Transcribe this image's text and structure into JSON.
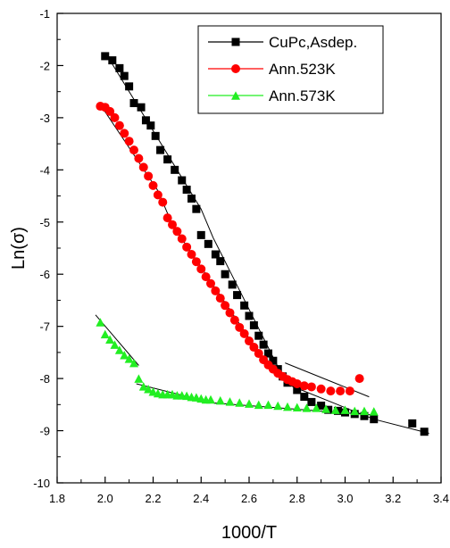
{
  "chart_data": {
    "type": "scatter",
    "title": "",
    "xlabel": "1000/T",
    "ylabel": "Ln(σ)",
    "xlim": [
      1.8,
      3.4
    ],
    "ylim": [
      -10,
      -1
    ],
    "x_ticks": [
      1.8,
      2.0,
      2.2,
      2.4,
      2.6,
      2.8,
      3.0,
      3.2,
      3.4
    ],
    "x_tick_labels": [
      "1.8",
      "2.0",
      "2.2",
      "2.4",
      "2.6",
      "2.8",
      "3.0",
      "3.2",
      "3.4"
    ],
    "y_ticks": [
      -10,
      -9,
      -8,
      -7,
      -6,
      -5,
      -4,
      -3,
      -2,
      -1
    ],
    "y_tick_labels": [
      "-10",
      "-9",
      "-8",
      "-7",
      "-6",
      "-5",
      "-4",
      "-3",
      "-2",
      "-1"
    ],
    "grid": false,
    "legend_position": "top-right",
    "series": [
      {
        "name": "CuPc,Asdep.",
        "marker": "square",
        "color": "#000000",
        "x": [
          2.0,
          2.03,
          2.06,
          2.08,
          2.1,
          2.12,
          2.15,
          2.17,
          2.19,
          2.21,
          2.23,
          2.26,
          2.29,
          2.32,
          2.34,
          2.36,
          2.38,
          2.4,
          2.43,
          2.46,
          2.48,
          2.5,
          2.53,
          2.55,
          2.58,
          2.6,
          2.62,
          2.64,
          2.66,
          2.68,
          2.7,
          2.72,
          2.74,
          2.76,
          2.8,
          2.83,
          2.86,
          2.9,
          2.93,
          2.97,
          3.0,
          3.04,
          3.08,
          3.12,
          3.28,
          3.33
        ],
        "y": [
          -1.82,
          -1.9,
          -2.05,
          -2.2,
          -2.4,
          -2.72,
          -2.8,
          -3.05,
          -3.15,
          -3.35,
          -3.62,
          -3.8,
          -4.0,
          -4.2,
          -4.38,
          -4.55,
          -4.75,
          -5.25,
          -5.42,
          -5.62,
          -5.75,
          -6.0,
          -6.2,
          -6.4,
          -6.6,
          -6.8,
          -6.98,
          -7.18,
          -7.35,
          -7.52,
          -7.66,
          -7.82,
          -7.96,
          -8.08,
          -8.22,
          -8.35,
          -8.45,
          -8.52,
          -8.6,
          -8.62,
          -8.65,
          -8.68,
          -8.72,
          -8.78,
          -8.86,
          -9.02
        ]
      },
      {
        "name": "Ann.523K",
        "marker": "circle",
        "color": "#ff0000",
        "x": [
          1.98,
          2.0,
          2.02,
          2.04,
          2.06,
          2.08,
          2.1,
          2.12,
          2.14,
          2.16,
          2.18,
          2.2,
          2.22,
          2.24,
          2.26,
          2.28,
          2.3,
          2.32,
          2.34,
          2.36,
          2.38,
          2.4,
          2.42,
          2.44,
          2.46,
          2.48,
          2.5,
          2.52,
          2.54,
          2.56,
          2.58,
          2.6,
          2.62,
          2.64,
          2.66,
          2.68,
          2.7,
          2.72,
          2.74,
          2.76,
          2.78,
          2.8,
          2.83,
          2.86,
          2.9,
          2.94,
          2.98,
          3.02,
          3.06
        ],
        "y": [
          -2.78,
          -2.8,
          -2.88,
          -3.0,
          -3.15,
          -3.3,
          -3.45,
          -3.62,
          -3.78,
          -3.95,
          -4.12,
          -4.3,
          -4.48,
          -4.62,
          -4.92,
          -5.05,
          -5.18,
          -5.32,
          -5.48,
          -5.62,
          -5.76,
          -5.9,
          -6.05,
          -6.18,
          -6.32,
          -6.46,
          -6.6,
          -6.74,
          -6.88,
          -7.02,
          -7.14,
          -7.28,
          -7.4,
          -7.52,
          -7.64,
          -7.74,
          -7.82,
          -7.9,
          -7.96,
          -8.02,
          -8.06,
          -8.1,
          -8.14,
          -8.16,
          -8.2,
          -8.24,
          -8.24,
          -8.24,
          -8.0
        ]
      },
      {
        "name": "Ann.573K",
        "marker": "triangle",
        "color": "#22ee22",
        "x": [
          1.98,
          2.0,
          2.02,
          2.04,
          2.06,
          2.08,
          2.1,
          2.12,
          2.14,
          2.16,
          2.18,
          2.2,
          2.22,
          2.24,
          2.26,
          2.28,
          2.3,
          2.32,
          2.34,
          2.36,
          2.38,
          2.4,
          2.42,
          2.44,
          2.48,
          2.52,
          2.56,
          2.6,
          2.64,
          2.68,
          2.72,
          2.76,
          2.8,
          2.84,
          2.88,
          2.92,
          2.96,
          3.0,
          3.04,
          3.08,
          3.12
        ],
        "y": [
          -6.92,
          -7.15,
          -7.25,
          -7.35,
          -7.45,
          -7.55,
          -7.62,
          -7.7,
          -8.0,
          -8.15,
          -8.2,
          -8.25,
          -8.28,
          -8.3,
          -8.3,
          -8.3,
          -8.32,
          -8.32,
          -8.33,
          -8.35,
          -8.36,
          -8.38,
          -8.4,
          -8.4,
          -8.42,
          -8.44,
          -8.46,
          -8.48,
          -8.5,
          -8.5,
          -8.52,
          -8.54,
          -8.55,
          -8.56,
          -8.56,
          -8.58,
          -8.6,
          -8.6,
          -8.62,
          -8.62,
          -8.63
        ]
      }
    ],
    "fit_lines": [
      {
        "color": "#000000",
        "points": [
          [
            2.0,
            -1.75
          ],
          [
            2.4,
            -4.75
          ],
          [
            2.45,
            -5.3
          ],
          [
            2.75,
            -8.05
          ],
          [
            2.78,
            -8.15
          ],
          [
            3.12,
            -8.78
          ],
          [
            3.35,
            -9.05
          ]
        ]
      },
      {
        "color": "#000000",
        "points": [
          [
            1.98,
            -2.75
          ],
          [
            2.22,
            -4.4
          ],
          [
            2.28,
            -5.05
          ],
          [
            2.64,
            -7.5
          ],
          [
            2.74,
            -7.95
          ]
        ]
      },
      {
        "color": "#000000",
        "points": [
          [
            2.75,
            -7.7
          ],
          [
            3.1,
            -8.35
          ]
        ]
      },
      {
        "color": "#000000",
        "points": [
          [
            1.96,
            -6.78
          ],
          [
            2.14,
            -7.75
          ]
        ]
      },
      {
        "color": "#000000",
        "points": [
          [
            2.13,
            -8.1
          ],
          [
            2.46,
            -8.48
          ]
        ]
      },
      {
        "color": "#000000",
        "points": [
          [
            2.4,
            -8.45
          ],
          [
            3.12,
            -8.7
          ]
        ]
      }
    ]
  }
}
